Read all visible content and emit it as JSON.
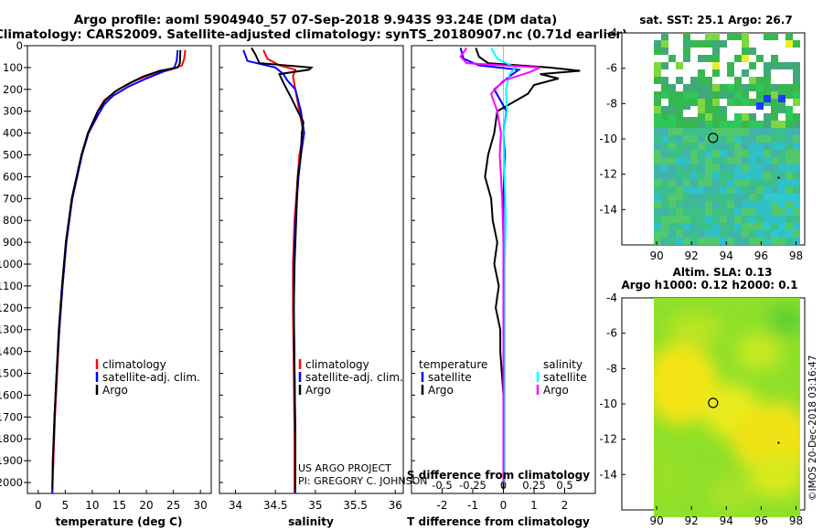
{
  "header": {
    "title_line1": "Argo profile: aoml 5904940_57 07-Sep-2018 9.943S 93.24E (DM data)",
    "title_line2": "Climatology: CARS2009. Satellite-adjusted climatology: synTS_20180907.nc (0.71d earlier)"
  },
  "colors": {
    "climatology": "#ff0000",
    "satellite": "#0000ff",
    "argo": "#000000",
    "salinity_satellite": "#00ffff",
    "salinity_argo": "#ff00ff"
  },
  "chart_data": [
    {
      "type": "line",
      "name": "temperature",
      "xlabel": "temperature (deg C)",
      "ylabel": "",
      "xlim": [
        -2,
        32
      ],
      "ylim": [
        2050,
        0
      ],
      "xticks": [
        0,
        5,
        10,
        15,
        20,
        25,
        30
      ],
      "yticks": [
        0,
        100,
        200,
        300,
        400,
        500,
        600,
        700,
        800,
        900,
        1000,
        1100,
        1200,
        1300,
        1400,
        1500,
        1600,
        1700,
        1800,
        1900,
        2000
      ],
      "legend": [
        "climatology",
        "satellite-adj. clim.",
        "Argo"
      ],
      "series": [
        {
          "name": "climatology",
          "color": "#ff0000",
          "depth": [
            20,
            60,
            90,
            110,
            130,
            160,
            200,
            250,
            300,
            400,
            500,
            700,
            900,
            1100,
            1300,
            1500,
            1700,
            1900,
            2050
          ],
          "values": [
            27.2,
            27.0,
            26.6,
            24.5,
            21,
            18,
            14.8,
            12.2,
            11,
            9.2,
            8,
            6.2,
            5.2,
            4.5,
            3.9,
            3.5,
            3.1,
            2.8,
            2.6
          ]
        },
        {
          "name": "satellite-adj. clim.",
          "color": "#0000ff",
          "depth": [
            20,
            70,
            100,
            120,
            150,
            190,
            230,
            270,
            320,
            400,
            500,
            700,
            900,
            1100,
            1300,
            1500,
            1700,
            1900,
            2050
          ],
          "values": [
            25.8,
            25.6,
            25.2,
            23,
            20,
            16.5,
            13.8,
            12.2,
            11,
            9.3,
            8.1,
            6.3,
            5.2,
            4.5,
            3.9,
            3.4,
            3.0,
            2.7,
            2.6
          ]
        },
        {
          "name": "Argo",
          "color": "#000000",
          "depth": [
            20,
            80,
            100,
            115,
            140,
            170,
            210,
            250,
            300,
            400,
            500,
            700,
            900,
            1100,
            1300,
            1500,
            1700,
            1900,
            2030
          ],
          "values": [
            26.3,
            26.2,
            25.8,
            22.5,
            19.5,
            17,
            14.2,
            12.4,
            11,
            9.2,
            8,
            6.2,
            5.1,
            4.4,
            3.8,
            3.4,
            3.0,
            2.7,
            2.6
          ]
        }
      ]
    },
    {
      "type": "line",
      "name": "salinity",
      "xlabel": "salinity",
      "ylabel": "",
      "xlim": [
        33.8,
        36.1
      ],
      "ylim": [
        2050,
        0
      ],
      "xticks": [
        34,
        34.5,
        35,
        35.5,
        36
      ],
      "xtick_labels": [
        "34",
        "34.5",
        "35",
        "35.5",
        "36"
      ],
      "legend": [
        "climatology",
        "satellite-adj. clim.",
        "Argo"
      ],
      "series": [
        {
          "name": "climatology",
          "color": "#ff0000",
          "depth": [
            20,
            60,
            90,
            110,
            140,
            200,
            300,
            400,
            500,
            600,
            800,
            1000,
            1200,
            1500,
            1800,
            2050
          ],
          "values": [
            34.35,
            34.4,
            34.55,
            34.75,
            34.72,
            34.75,
            34.8,
            34.85,
            34.8,
            34.78,
            34.74,
            34.72,
            34.72,
            34.73,
            34.74,
            34.74
          ]
        },
        {
          "name": "satellite-adj. clim.",
          "color": "#0000ff",
          "depth": [
            20,
            70,
            100,
            130,
            160,
            200,
            300,
            400,
            500,
            600,
            800,
            1000,
            1200,
            1500,
            1800,
            2050
          ],
          "values": [
            34.1,
            34.15,
            34.5,
            34.6,
            34.65,
            34.75,
            34.82,
            34.86,
            34.82,
            34.79,
            34.75,
            34.73,
            34.73,
            34.74,
            34.75,
            34.75
          ]
        },
        {
          "name": "Argo",
          "color": "#000000",
          "depth": [
            10,
            40,
            80,
            100,
            110,
            130,
            170,
            240,
            300,
            350,
            400,
            500,
            600,
            800,
            1000,
            1200,
            1500,
            1800,
            2030
          ],
          "values": [
            34.2,
            34.25,
            34.3,
            34.95,
            34.92,
            34.55,
            34.6,
            34.7,
            34.78,
            34.85,
            34.83,
            34.82,
            34.78,
            34.76,
            34.74,
            34.73,
            34.74,
            34.75,
            34.75
          ]
        }
      ]
    },
    {
      "type": "line",
      "name": "differences",
      "xlabel": "T difference from climatology",
      "ylabel": "",
      "secondary_xlabel": "S difference from climatology",
      "xlim": [
        -3,
        3
      ],
      "ylim": [
        2050,
        0
      ],
      "xticks": [
        -2,
        -1,
        0,
        1,
        2
      ],
      "xtick_labels": [
        "-2",
        "-1",
        "0",
        "1",
        "2"
      ],
      "secondary_xticks": [
        -0.5,
        -0.25,
        0,
        0.25,
        0.5
      ],
      "secondary_xtick_labels": [
        "-0.5",
        "-0.25",
        "0",
        "0.25",
        "0.5"
      ],
      "legend_temperature_title": "temperature",
      "legend_salinity_title": "salinity",
      "legend": [
        "satellite",
        "Argo",
        "satellite",
        "Argo"
      ],
      "series": [
        {
          "name": "T satellite",
          "color": "#0000ff",
          "depth": [
            10,
            60,
            90,
            110,
            140,
            200,
            300,
            400,
            500,
            700,
            1000,
            1500,
            2000
          ],
          "values": [
            -1.4,
            -1.3,
            -0.8,
            0.5,
            0.2,
            -0.3,
            0.1,
            0,
            0.05,
            0,
            0,
            0,
            0
          ]
        },
        {
          "name": "T Argo",
          "color": "#000000",
          "depth": [
            10,
            50,
            80,
            100,
            115,
            130,
            150,
            180,
            220,
            300,
            400,
            500,
            600,
            700,
            800,
            900,
            1000,
            1100,
            1200,
            1300,
            1400,
            1500,
            1600,
            1700,
            1800,
            1900,
            2030
          ],
          "values": [
            -0.9,
            -0.8,
            -0.5,
            1.5,
            2.5,
            1.2,
            1.8,
            1.0,
            0.8,
            -0.2,
            -0.3,
            -0.5,
            -0.6,
            -0.4,
            -0.35,
            -0.2,
            -0.3,
            -0.15,
            -0.25,
            -0.1,
            -0.1,
            -0.05,
            0,
            0,
            0,
            0,
            0
          ]
        },
        {
          "name": "S satellite",
          "color": "#00ffff",
          "depth": [
            10,
            60,
            100,
            130,
            200,
            300,
            400,
            600,
            800,
            1000,
            1500,
            2000
          ],
          "values": [
            -0.1,
            -0.05,
            0.1,
            0.05,
            0.02,
            0.03,
            0,
            0.01,
            0.02,
            0.01,
            0.01,
            0.01
          ]
        },
        {
          "name": "S Argo",
          "color": "#ff00ff",
          "depth": [
            10,
            50,
            80,
            100,
            120,
            160,
            220,
            300,
            400,
            500,
            700,
            900,
            1200,
            1500,
            2000
          ],
          "values": [
            -0.3,
            -0.35,
            -0.3,
            0.3,
            0.22,
            0,
            -0.1,
            -0.05,
            -0.02,
            -0.03,
            -0.01,
            0,
            0,
            0,
            0
          ]
        }
      ]
    },
    {
      "type": "heatmap",
      "name": "sst_map",
      "title": "sat. SST: 25.1 Argo: 26.7",
      "xlim": [
        88,
        98.5
      ],
      "ylim": [
        -16,
        -4
      ],
      "xticks": [
        90,
        92,
        94,
        96,
        98
      ],
      "yticks": [
        -4,
        -6,
        -8,
        -10,
        -12,
        -14
      ],
      "float_position": {
        "lon": 93.24,
        "lat": -9.943
      }
    },
    {
      "type": "heatmap",
      "name": "sla_map",
      "title": "Altim. SLA: 0.13",
      "subtitle": "Argo h1000: 0.12 h2000: 0.1",
      "xlim": [
        88,
        98.5
      ],
      "ylim": [
        -16,
        -4
      ],
      "xticks": [
        90,
        92,
        94,
        96,
        98
      ],
      "yticks": [
        -4,
        -6,
        -8,
        -10,
        -12,
        -14
      ],
      "float_position": {
        "lon": 93.24,
        "lat": -9.943
      }
    }
  ],
  "credits": {
    "line1": "US ARGO PROJECT",
    "line2": "PI: GREGORY C. JOHNSON",
    "imos": "©IMOS 20-Dec-2018 03:16:47"
  }
}
